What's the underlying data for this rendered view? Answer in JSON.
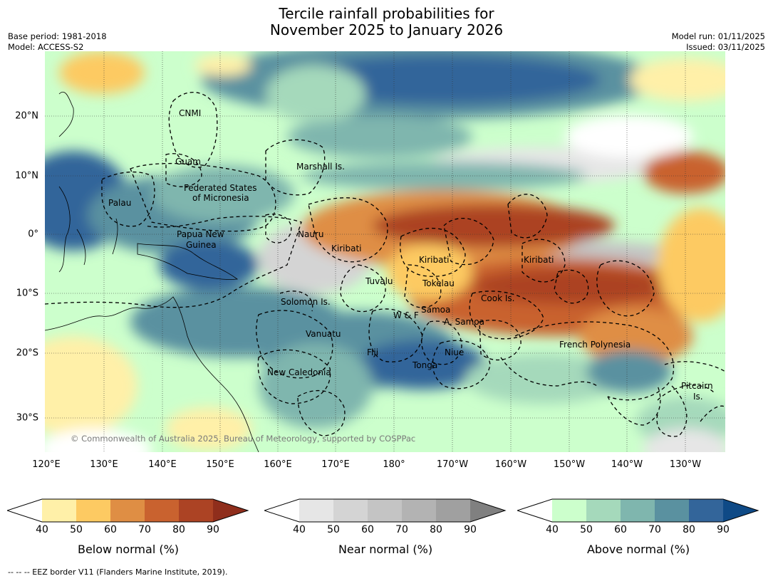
{
  "title": {
    "line1": "Tercile rainfall probabilities for",
    "line2": "November 2025 to January 2026"
  },
  "meta": {
    "base_period": "Base period: 1981-2018",
    "model": "Model: ACCESS-S2",
    "model_run": "Model run: 01/11/2025",
    "issued": "Issued: 03/11/2025"
  },
  "axes": {
    "lat_labels": [
      "20°N",
      "10°N",
      "0°",
      "10°S",
      "20°S",
      "30°S"
    ],
    "lon_labels": [
      "120°E",
      "130°E",
      "140°E",
      "150°E",
      "160°E",
      "170°E",
      "180°",
      "170°W",
      "160°W",
      "150°W",
      "140°W",
      "130°W"
    ]
  },
  "regions": [
    "CNMI",
    "Guam",
    "Marshall Is.",
    "Federated States",
    "of Micronesia",
    "Palau",
    "Papua New",
    "Guinea",
    "Nauru",
    "Kiribati",
    "Kiribati",
    "Kiribati",
    "Tuvalu",
    "Tokelau",
    "Cook Is.",
    "Solomon Is.",
    "Samoa",
    "W & F",
    "A. Samoa",
    "Vanuatu",
    "Fiji",
    "Niue",
    "French Polynesia",
    "Tonga",
    "New Caledonia",
    "Pitcairn",
    "Is."
  ],
  "copyright": "© Commonwealth of Australia 2025, Bureau of Meteorology, supported by COSPPac",
  "colorbars": [
    {
      "title": "Below normal (%)",
      "ticks": [
        "40",
        "50",
        "60",
        "70",
        "80",
        "90"
      ],
      "colors": [
        "#ffffff",
        "#fff0a8",
        "#fdca62",
        "#df8e44",
        "#c9622f",
        "#ac4324",
        "#8f2e1c"
      ]
    },
    {
      "title": "Near normal (%)",
      "ticks": [
        "40",
        "50",
        "60",
        "70",
        "80",
        "90"
      ],
      "colors": [
        "#ffffff",
        "#e6e6e6",
        "#d4d4d4",
        "#c4c4c4",
        "#b3b3b3",
        "#a0a0a0",
        "#808080"
      ]
    },
    {
      "title": "Above normal (%)",
      "ticks": [
        "40",
        "50",
        "60",
        "70",
        "80",
        "90"
      ],
      "colors": [
        "#ffffff",
        "#ccffcc",
        "#a5d9bb",
        "#7fb6ae",
        "#5a91a0",
        "#33659a",
        "#0f4a86"
      ]
    }
  ],
  "footnote": "--  --  -- EEZ border V11 (Flanders Marine Institute, 2019)."
}
